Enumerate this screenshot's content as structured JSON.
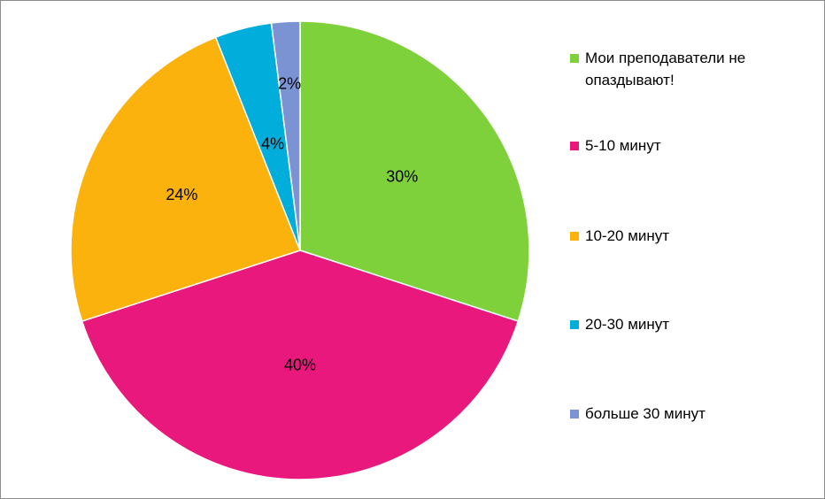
{
  "chart_data": {
    "type": "pie",
    "title": "",
    "slices": [
      {
        "label": "Мои преподаватели не опаздывают!",
        "value": 30,
        "value_label": "30%",
        "color": "#7ED13B"
      },
      {
        "label": "5-10 минут",
        "value": 40,
        "value_label": "40%",
        "color": "#E8187C"
      },
      {
        "label": "10-20 минут",
        "value": 24,
        "value_label": "24%",
        "color": "#FCB20C"
      },
      {
        "label": "20-30 минут",
        "value": 4,
        "value_label": "4%",
        "color": "#00ADDB"
      },
      {
        "label": "больше 30 минут",
        "value": 2,
        "value_label": "2%",
        "color": "#7B93D3"
      }
    ],
    "start_angle": "top, clockwise",
    "legend_placement": "right"
  }
}
